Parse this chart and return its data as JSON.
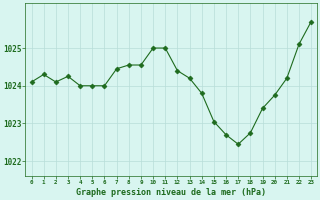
{
  "x": [
    0,
    1,
    2,
    3,
    4,
    5,
    6,
    7,
    8,
    9,
    10,
    11,
    12,
    13,
    14,
    15,
    16,
    17,
    18,
    19,
    20,
    21,
    22,
    23
  ],
  "y": [
    1024.1,
    1024.3,
    1024.1,
    1024.25,
    1024.0,
    1024.0,
    1024.0,
    1024.45,
    1024.55,
    1024.55,
    1025.0,
    1025.0,
    1024.4,
    1024.2,
    1023.8,
    1023.05,
    1022.7,
    1022.45,
    1022.75,
    1023.4,
    1023.75,
    1024.2,
    1025.1,
    1025.7
  ],
  "line_color": "#1e6b1e",
  "marker": "D",
  "marker_size": 2.5,
  "bg_color": "#d8f5f0",
  "grid_color": "#b8ddd8",
  "xlabel": "Graphe pression niveau de la mer (hPa)",
  "xlabel_color": "#1e6b1e",
  "tick_color": "#1e6b1e",
  "yticks": [
    1022,
    1023,
    1024,
    1025
  ],
  "ylim": [
    1021.6,
    1026.2
  ],
  "xlim": [
    -0.5,
    23.5
  ],
  "xtick_labels": [
    "0",
    "1",
    "2",
    "3",
    "4",
    "5",
    "6",
    "7",
    "8",
    "9",
    "10",
    "11",
    "12",
    "13",
    "14",
    "15",
    "16",
    "17",
    "18",
    "19",
    "20",
    "21",
    "22",
    "23"
  ]
}
